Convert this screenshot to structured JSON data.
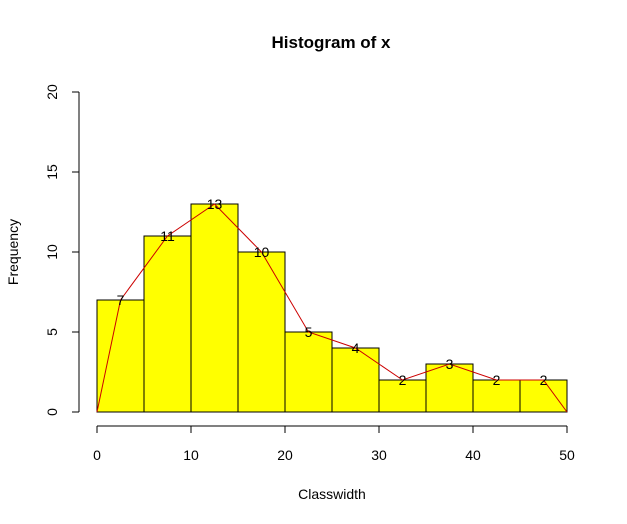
{
  "chart_data": {
    "type": "bar",
    "title": "Histogram of x",
    "xlabel": "Classwidth",
    "ylabel": "Frequency",
    "breaks": [
      0,
      5,
      10,
      15,
      20,
      25,
      30,
      35,
      40,
      45,
      50
    ],
    "values": [
      7,
      11,
      13,
      10,
      5,
      4,
      2,
      3,
      2,
      2
    ],
    "data_labels": [
      "7",
      "11",
      "13",
      "10",
      "5",
      "4",
      "2",
      "3",
      "2",
      "2"
    ],
    "xlim": [
      0,
      50
    ],
    "ylim": [
      0,
      20
    ],
    "x_ticks": [
      "0",
      "10",
      "20",
      "30",
      "40",
      "50"
    ],
    "y_ticks": [
      "0",
      "5",
      "10",
      "15",
      "20"
    ],
    "frequency_polygon": {
      "x": [
        0,
        2.5,
        7.5,
        12.5,
        17.5,
        22.5,
        27.5,
        32.5,
        37.5,
        42.5,
        47.5,
        50
      ],
      "y": [
        0,
        7,
        11,
        13,
        10,
        5,
        4,
        2,
        3,
        2,
        2,
        0
      ]
    },
    "grid": false,
    "bar_color": "#ffff00",
    "bar_border_color": "#000000",
    "polygon_color": "#cc0000"
  }
}
